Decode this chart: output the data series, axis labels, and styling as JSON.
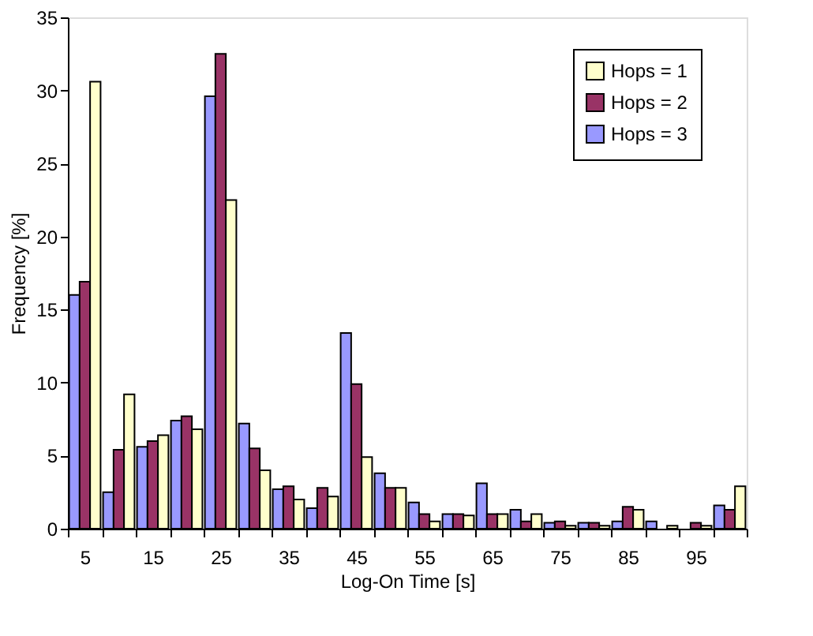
{
  "chart_data": {
    "type": "bar",
    "xlabel": "Log-On Time [s]",
    "ylabel": "Frequency [%]",
    "categories": [
      "5",
      null,
      "15",
      null,
      "25",
      null,
      "35",
      null,
      "45",
      null,
      "55",
      null,
      "65",
      null,
      "75",
      null,
      "85",
      null,
      "95",
      null
    ],
    "series": [
      {
        "name": "Hops = 3",
        "color": "#9999ff",
        "values": [
          16.0,
          2.5,
          5.6,
          7.4,
          29.6,
          7.2,
          2.7,
          1.4,
          13.4,
          3.8,
          1.8,
          1.0,
          3.1,
          1.3,
          0.4,
          0.4,
          0.5,
          0.5,
          null,
          1.6
        ]
      },
      {
        "name": "Hops = 2",
        "color": "#993366",
        "values": [
          16.9,
          5.4,
          6.0,
          7.7,
          32.5,
          5.5,
          2.9,
          2.8,
          9.9,
          2.8,
          1.0,
          1.0,
          1.0,
          0.5,
          0.5,
          0.4,
          1.5,
          null,
          0.4,
          1.3
        ]
      },
      {
        "name": "Hops = 1",
        "color": "#ffffcc",
        "values": [
          30.6,
          9.2,
          6.4,
          6.8,
          22.5,
          4.0,
          2.0,
          2.2,
          4.9,
          2.8,
          0.5,
          0.9,
          1.0,
          1.0,
          0.2,
          0.2,
          1.3,
          0.2,
          0.2,
          2.9
        ]
      }
    ],
    "ylim": [
      0,
      35
    ],
    "yticks": [
      0,
      5,
      10,
      15,
      20,
      25,
      30,
      35
    ],
    "grid": false,
    "legend": "top right"
  }
}
